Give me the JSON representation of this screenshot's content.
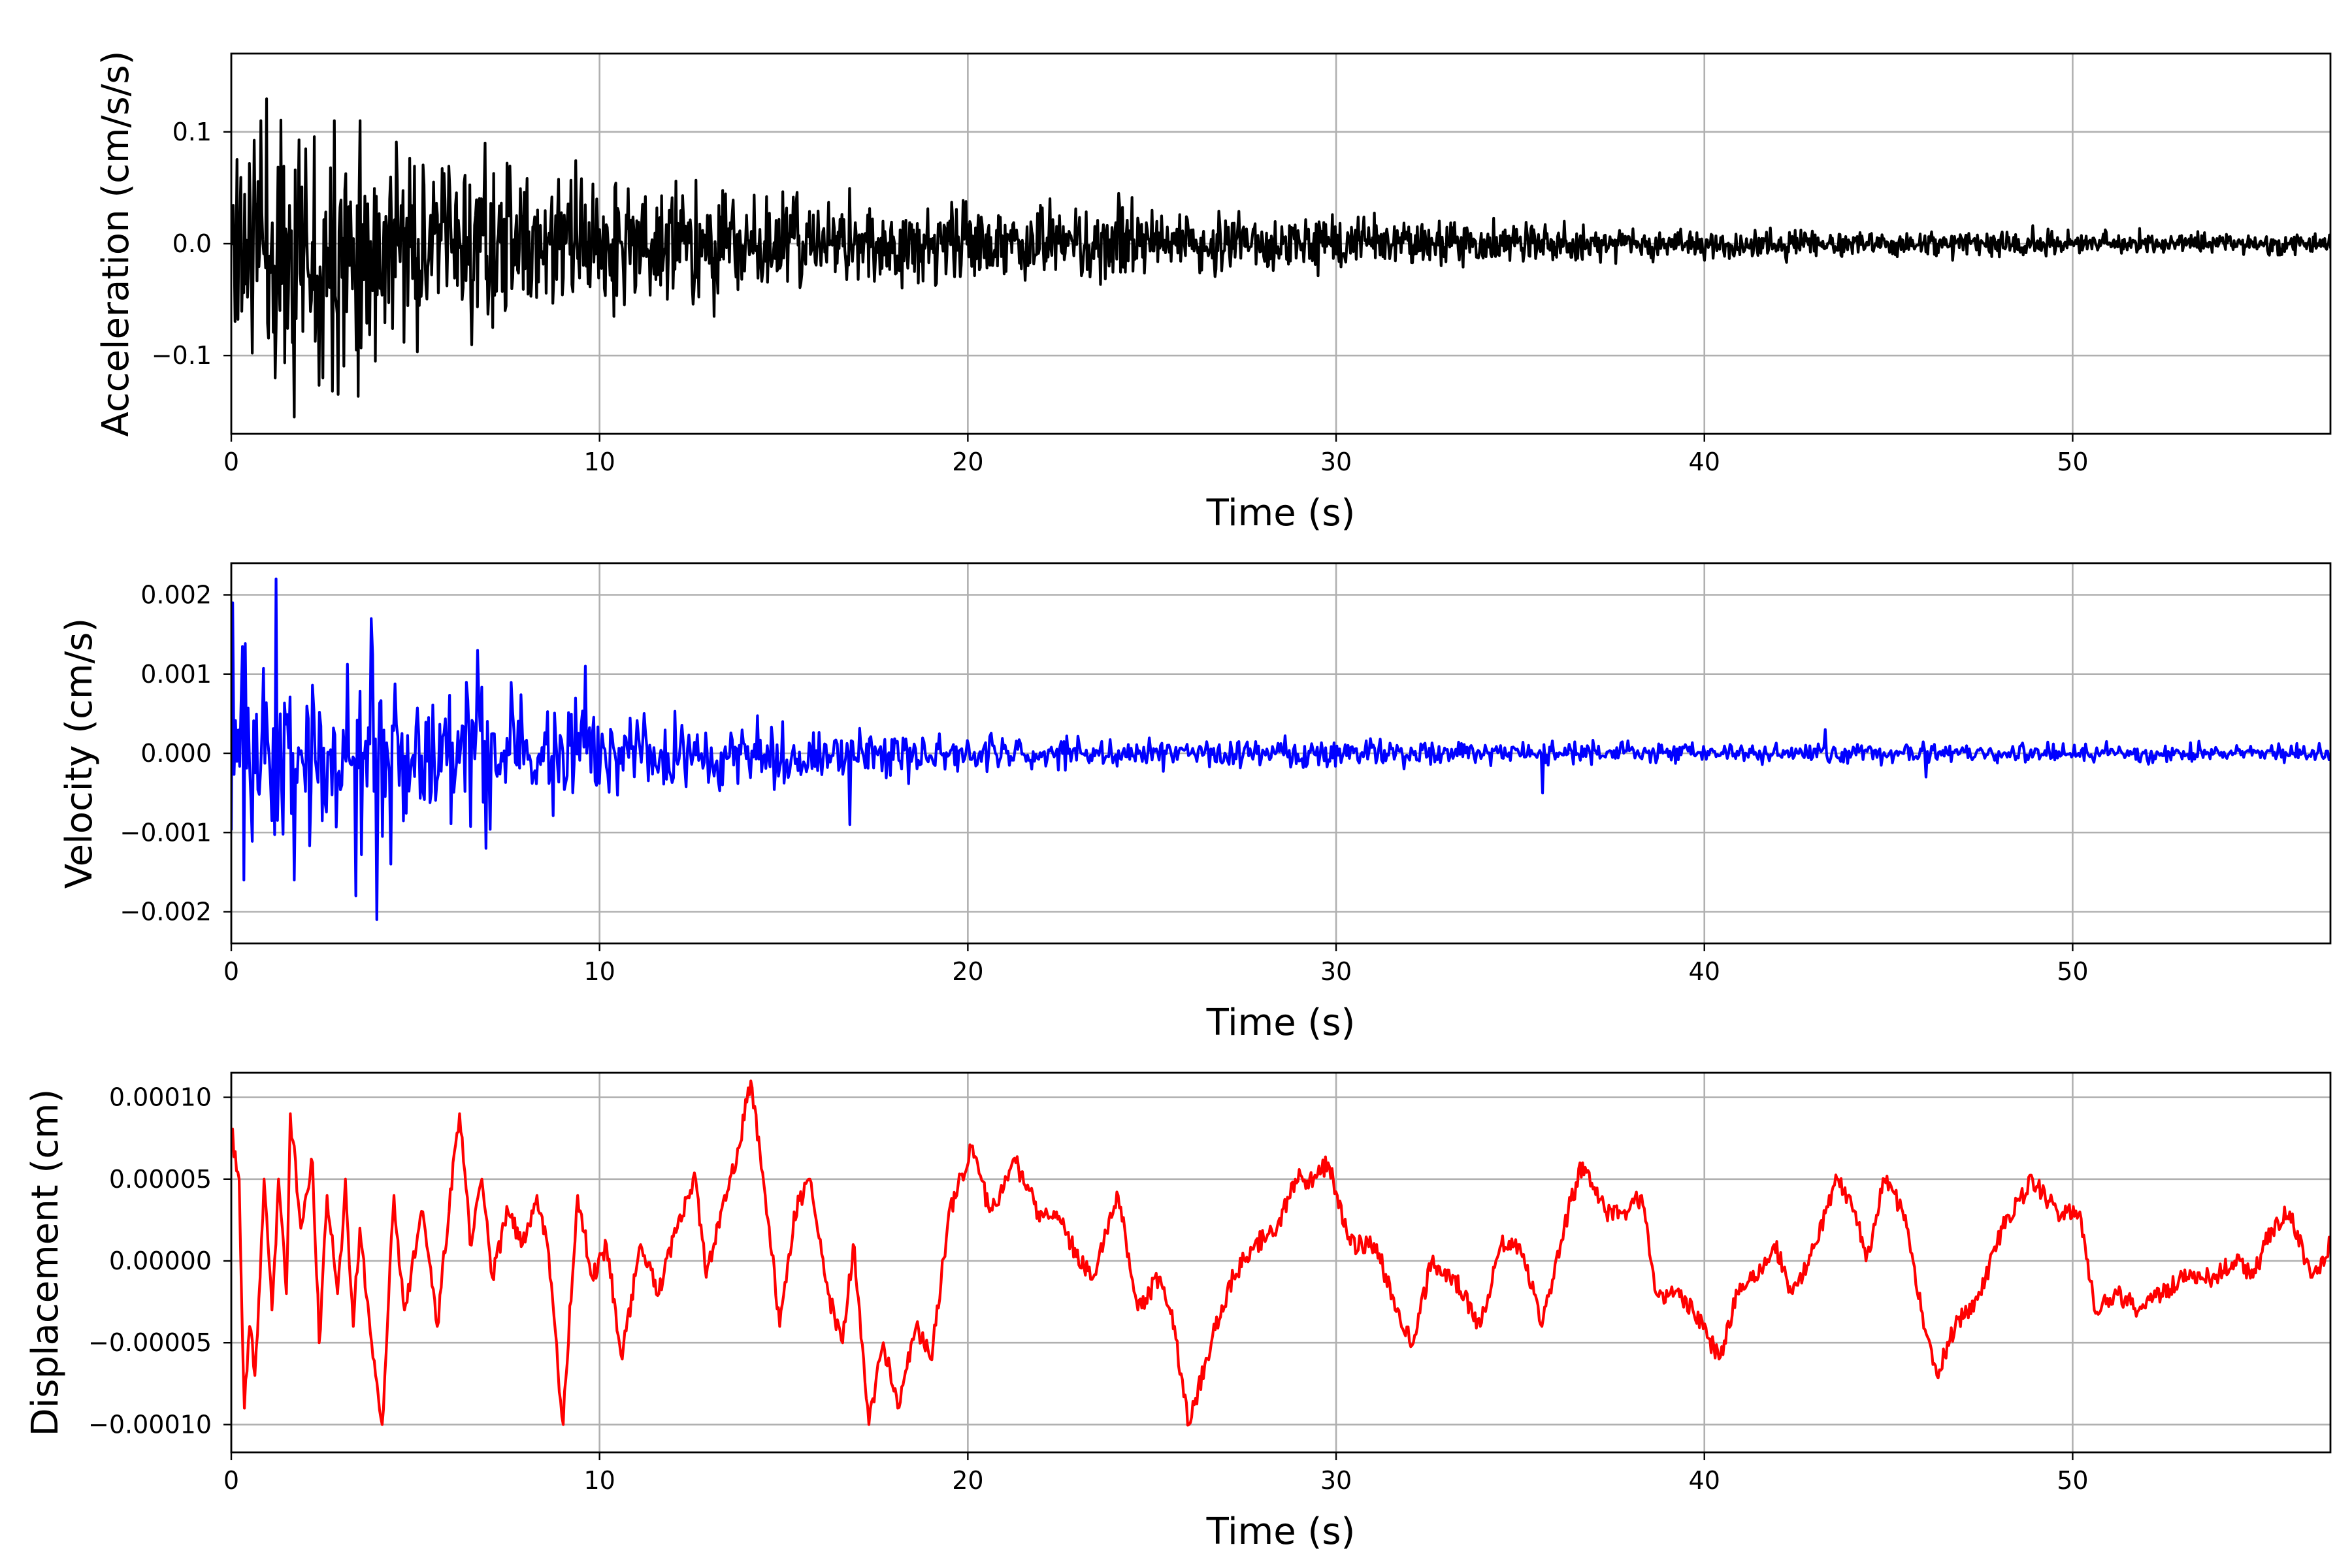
{
  "chart_data": [
    {
      "type": "line",
      "title": "",
      "xlabel": "Time (s)",
      "ylabel": "Acceleration (cm/s/s)",
      "xlim": [
        0,
        57
      ],
      "ylim": [
        -0.17,
        0.17
      ],
      "xticks": [
        0,
        10,
        20,
        30,
        40,
        50
      ],
      "xtick_labels": [
        "0",
        "10",
        "20",
        "30",
        "40",
        "50"
      ],
      "yticks": [
        0.1,
        0.0,
        -0.1
      ],
      "ytick_labels": [
        "0.1",
        "0.0",
        "−0.1"
      ],
      "grid": true,
      "color": "#000000",
      "series": [
        {
          "kind": "noise",
          "seed": 11,
          "duration": 57,
          "samples": 2200,
          "envelope": [
            [
              0,
              0.1
            ],
            [
              2,
              0.1
            ],
            [
              4,
              0.085
            ],
            [
              7,
              0.065
            ],
            [
              10,
              0.052
            ],
            [
              15,
              0.042
            ],
            [
              20,
              0.033
            ],
            [
              25,
              0.026
            ],
            [
              30,
              0.02
            ],
            [
              35,
              0.017
            ],
            [
              40,
              0.012
            ],
            [
              45,
              0.011
            ],
            [
              50,
              0.01
            ],
            [
              57,
              0.008
            ]
          ],
          "peaks": [
            [
              0.8,
              0.11
            ],
            [
              1.2,
              -0.12
            ],
            [
              1.7,
              -0.155
            ],
            [
              2.5,
              -0.12
            ],
            [
              2.8,
              0.11
            ],
            [
              3.5,
              0.11
            ],
            [
              3.9,
              -0.105
            ],
            [
              6.9,
              0.09
            ],
            [
              7.1,
              -0.075
            ],
            [
              10.4,
              -0.065
            ],
            [
              13.1,
              -0.065
            ],
            [
              24.1,
              0.045
            ],
            [
              29.9,
              0.026
            ],
            [
              36.2,
              0.02
            ]
          ]
        }
      ]
    },
    {
      "type": "line",
      "title": "",
      "xlabel": "Time (s)",
      "ylabel": "Velocity (cm/s)",
      "xlim": [
        0,
        57
      ],
      "ylim": [
        -0.0024,
        0.0024
      ],
      "xticks": [
        0,
        10,
        20,
        30,
        40,
        50
      ],
      "xtick_labels": [
        "0",
        "10",
        "20",
        "30",
        "40",
        "50"
      ],
      "yticks": [
        0.002,
        0.001,
        0.0,
        -0.001,
        -0.002
      ],
      "ytick_labels": [
        "0.002",
        "0.001",
        "0.000",
        "−0.001",
        "−0.002"
      ],
      "grid": true,
      "color": "#0000ff",
      "series": [
        {
          "kind": "noise",
          "seed": 23,
          "duration": 57,
          "samples": 1500,
          "envelope": [
            [
              0,
              0.0012
            ],
            [
              4,
              0.001
            ],
            [
              7,
              0.0008
            ],
            [
              10,
              0.0005
            ],
            [
              15,
              0.00035
            ],
            [
              20,
              0.0002
            ],
            [
              30,
              0.00015
            ],
            [
              40,
              0.00012
            ],
            [
              57,
              0.0001
            ]
          ],
          "peaks": [
            [
              0.05,
              0.0019
            ],
            [
              1.2,
              0.0022
            ],
            [
              0.35,
              -0.0016
            ],
            [
              1.7,
              -0.0016
            ],
            [
              3.4,
              -0.0018
            ],
            [
              3.95,
              -0.0021
            ],
            [
              3.8,
              0.0017
            ],
            [
              6.7,
              0.0013
            ],
            [
              6.9,
              -0.0012
            ],
            [
              9.6,
              0.0011
            ],
            [
              16.8,
              -0.0009
            ],
            [
              35.6,
              -0.0005
            ],
            [
              43.3,
              0.0003
            ],
            [
              46.0,
              -0.0003
            ]
          ]
        }
      ]
    },
    {
      "type": "line",
      "title": "",
      "xlabel": "Time (s)",
      "ylabel": "Displacement (cm)",
      "xlim": [
        0,
        57
      ],
      "ylim": [
        -0.000117,
        0.000115
      ],
      "xticks": [
        0,
        10,
        20,
        30,
        40,
        50
      ],
      "xtick_labels": [
        "0",
        "10",
        "20",
        "30",
        "40",
        "50"
      ],
      "yticks": [
        0.0001,
        5e-05,
        0.0,
        -5e-05,
        -0.0001
      ],
      "ytick_labels": [
        "0.00010",
        "0.00005",
        "0.00000",
        "−0.00005",
        "−0.00010"
      ],
      "grid": true,
      "color": "#ff0000",
      "series": [
        {
          "kind": "trace",
          "seed": 37,
          "duration": 57,
          "samples": 1600,
          "jitter": 6e-06,
          "points": [
            [
              0,
              8e-05
            ],
            [
              0.2,
              5e-05
            ],
            [
              0.35,
              -9e-05
            ],
            [
              0.5,
              -4e-05
            ],
            [
              0.65,
              -7e-05
            ],
            [
              0.9,
              5e-05
            ],
            [
              1.1,
              -3e-05
            ],
            [
              1.3,
              5e-05
            ],
            [
              1.5,
              -2e-05
            ],
            [
              1.6,
              9e-05
            ],
            [
              1.9,
              2e-05
            ],
            [
              2.2,
              6e-05
            ],
            [
              2.4,
              -5e-05
            ],
            [
              2.6,
              4e-05
            ],
            [
              2.9,
              -2e-05
            ],
            [
              3.1,
              5e-05
            ],
            [
              3.3,
              -4e-05
            ],
            [
              3.5,
              2e-05
            ],
            [
              3.8,
              -5e-05
            ],
            [
              4.1,
              -0.0001
            ],
            [
              4.4,
              4e-05
            ],
            [
              4.7,
              -3e-05
            ],
            [
              5.2,
              3e-05
            ],
            [
              5.6,
              -4e-05
            ],
            [
              5.9,
              3e-05
            ],
            [
              6.2,
              9e-05
            ],
            [
              6.5,
              1e-05
            ],
            [
              6.8,
              5e-05
            ],
            [
              7.1,
              -1e-05
            ],
            [
              7.5,
              3e-05
            ],
            [
              7.9,
              1e-05
            ],
            [
              8.3,
              4e-05
            ],
            [
              8.6,
              1e-05
            ],
            [
              9.0,
              -0.0001
            ],
            [
              9.4,
              4e-05
            ],
            [
              9.8,
              -1e-05
            ],
            [
              10.2,
              1e-05
            ],
            [
              10.6,
              -6e-05
            ],
            [
              11.1,
              1e-05
            ],
            [
              11.6,
              -2e-05
            ],
            [
              12.1,
              2e-05
            ],
            [
              12.6,
              5e-05
            ],
            [
              12.9,
              -1e-05
            ],
            [
              13.4,
              4e-05
            ],
            [
              13.7,
              6e-05
            ],
            [
              14.1,
              0.00011
            ],
            [
              14.5,
              4e-05
            ],
            [
              14.9,
              -4e-05
            ],
            [
              15.3,
              3e-05
            ],
            [
              15.7,
              5e-05
            ],
            [
              16.2,
              -2e-05
            ],
            [
              16.6,
              -5e-05
            ],
            [
              16.9,
              1e-05
            ],
            [
              17.3,
              -0.0001
            ],
            [
              17.7,
              -5e-05
            ],
            [
              18.1,
              -9e-05
            ],
            [
              18.6,
              -4e-05
            ],
            [
              19.0,
              -6e-05
            ],
            [
              19.5,
              3e-05
            ],
            [
              20.1,
              7e-05
            ],
            [
              20.6,
              3e-05
            ],
            [
              21.3,
              6e-05
            ],
            [
              21.9,
              3e-05
            ],
            [
              22.4,
              3e-05
            ],
            [
              22.8,
              1e-05
            ],
            [
              23.4,
              -1e-05
            ],
            [
              24.1,
              4e-05
            ],
            [
              24.6,
              -3e-05
            ],
            [
              25.2,
              -1e-05
            ],
            [
              25.6,
              -4e-05
            ],
            [
              26.0,
              -0.0001
            ],
            [
              26.6,
              -5e-05
            ],
            [
              27.2,
              -1e-05
            ],
            [
              27.8,
              1e-05
            ],
            [
              28.4,
              2e-05
            ],
            [
              28.9,
              5e-05
            ],
            [
              29.4,
              5e-05
            ],
            [
              29.8,
              6e-05
            ],
            [
              30.4,
              1e-05
            ],
            [
              31.1,
              1e-05
            ],
            [
              31.6,
              -3e-05
            ],
            [
              32.1,
              -5e-05
            ],
            [
              32.6,
              0.0
            ],
            [
              33.2,
              -1e-05
            ],
            [
              33.9,
              -4e-05
            ],
            [
              34.5,
              1e-05
            ],
            [
              35.0,
              1e-05
            ],
            [
              35.6,
              -4e-05
            ],
            [
              36.3,
              3e-05
            ],
            [
              36.7,
              6e-05
            ],
            [
              37.3,
              3e-05
            ],
            [
              37.9,
              3e-05
            ],
            [
              38.3,
              4e-05
            ],
            [
              38.7,
              -2e-05
            ],
            [
              39.2,
              -2e-05
            ],
            [
              39.7,
              -3e-05
            ],
            [
              40.4,
              -6e-05
            ],
            [
              40.9,
              -2e-05
            ],
            [
              41.4,
              -1e-05
            ],
            [
              41.9,
              1e-05
            ],
            [
              42.4,
              -2e-05
            ],
            [
              43.0,
              1e-05
            ],
            [
              43.6,
              5e-05
            ],
            [
              44.1,
              3e-05
            ],
            [
              44.4,
              0.0
            ],
            [
              44.9,
              5e-05
            ],
            [
              45.4,
              3e-05
            ],
            [
              45.9,
              -3e-05
            ],
            [
              46.3,
              -7e-05
            ],
            [
              46.8,
              -4e-05
            ],
            [
              47.5,
              -2e-05
            ],
            [
              48.1,
              2e-05
            ],
            [
              48.9,
              5e-05
            ],
            [
              49.6,
              3e-05
            ],
            [
              50.2,
              3e-05
            ],
            [
              50.6,
              -3e-05
            ],
            [
              51.2,
              -2e-05
            ],
            [
              51.8,
              -3e-05
            ],
            [
              52.4,
              -2e-05
            ],
            [
              53.1,
              -1e-05
            ],
            [
              53.8,
              -1e-05
            ],
            [
              54.4,
              0.0
            ],
            [
              54.9,
              -1e-05
            ],
            [
              55.4,
              2e-05
            ],
            [
              55.9,
              3e-05
            ],
            [
              56.5,
              -1e-05
            ],
            [
              57,
              1e-05
            ]
          ]
        }
      ]
    }
  ]
}
